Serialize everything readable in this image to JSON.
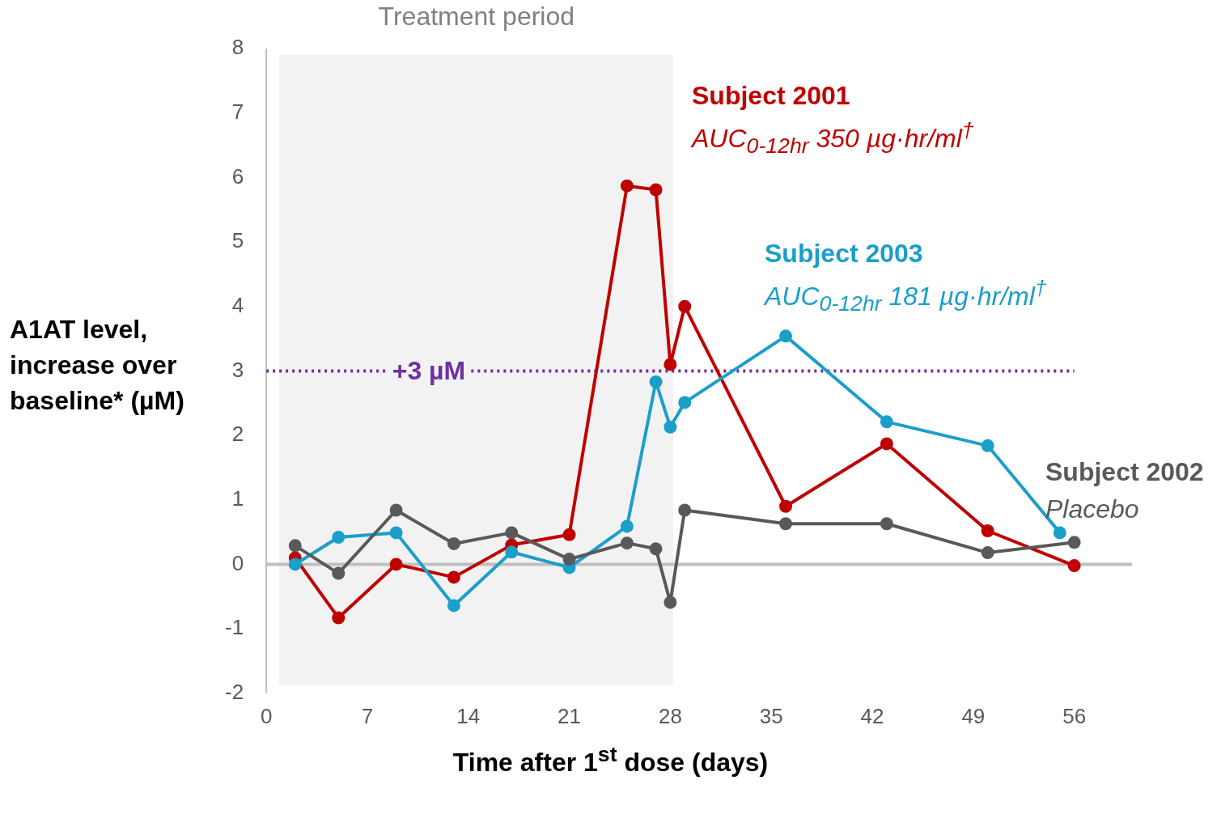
{
  "chart_data": {
    "type": "line",
    "xlabel": "Time after 1$^{st}$ dose (days)",
    "ylabel": "A1AT level, increase over baseline* (µM)",
    "xlim": [
      0,
      60
    ],
    "xticks": [
      0,
      7,
      14,
      21,
      28,
      35,
      42,
      49,
      56
    ],
    "ylim": [
      -2,
      8
    ],
    "yticks": [
      -2,
      -1,
      0,
      1,
      2,
      3,
      4,
      5,
      6,
      7,
      8
    ],
    "x": [
      2,
      5,
      9,
      13,
      17,
      21,
      25,
      27,
      28,
      29,
      36,
      43,
      50,
      56
    ],
    "series": [
      {
        "name": "Subject 2002",
        "color": "#595959",
        "values": [
          0.29,
          -0.14,
          0.84,
          0.32,
          0.49,
          0.08,
          0.33,
          0.24,
          -0.59,
          0.84,
          0.63,
          0.63,
          0.18,
          0.34
        ]
      },
      {
        "name": "Subject 2003",
        "color": "#1a9fc9",
        "x": [
          2,
          5,
          9,
          13,
          17,
          21,
          25,
          27,
          28,
          29,
          36,
          43,
          50,
          55
        ],
        "values": [
          0,
          0.42,
          0.49,
          -0.64,
          0.19,
          -0.05,
          0.59,
          2.83,
          2.13,
          2.51,
          3.54,
          2.21,
          1.84,
          0.49
        ]
      },
      {
        "name": "Subject 2001",
        "color": "#c00000",
        "values": [
          0.1,
          -0.83,
          0,
          -0.2,
          0.3,
          0.46,
          5.87,
          5.81,
          3.1,
          4.0,
          0.9,
          1.87,
          0.52,
          -0.02
        ]
      }
    ],
    "annotations": [
      "Placebo",
      "AUC$_{0-12hr}$ 181 µg·hr/ml$^{†}$",
      "AUC$_{0-12hr}$ 350 µg·hr/ml$^{†}$"
    ],
    "ref_lines": [
      {
        "axis": "y",
        "value": 0,
        "color": "#bfbfbf",
        "line_style": "solid"
      },
      {
        "axis": "y",
        "value": 3,
        "label": "+3 µM",
        "color": "#7030a0",
        "line_style": "dotted"
      }
    ],
    "bands": [
      {
        "axis": "x",
        "from": 0.9,
        "to": 28.2,
        "label": "Treatment period",
        "color": "#f2f2f2"
      }
    ],
    "marker": "circle",
    "legend": false
  }
}
